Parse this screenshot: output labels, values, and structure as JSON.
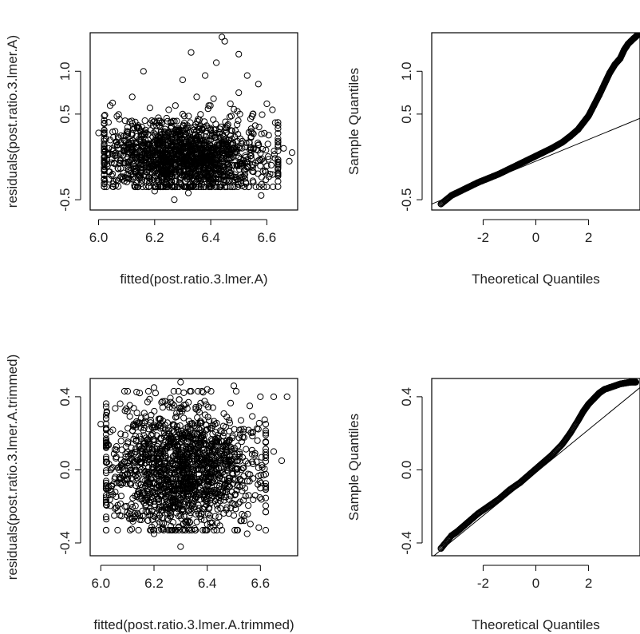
{
  "chart_data": [
    {
      "type": "scatter",
      "title": "",
      "xlabel": "fitted(post.ratio.3.lmer.A)",
      "ylabel": "residuals(post.ratio.3.lmer.A)",
      "xlim": [
        5.97,
        6.71
      ],
      "ylim": [
        -0.62,
        1.45
      ],
      "xticks": [
        6.0,
        6.2,
        6.4,
        6.6
      ],
      "xtick_labels": [
        "6.0",
        "6.2",
        "6.4",
        "6.6"
      ],
      "yticks": [
        -0.5,
        0.5,
        1.0
      ],
      "ytick_labels": [
        "-0.5",
        "0.5",
        "1.0"
      ],
      "marker": "circle-open",
      "points": [
        [
          6.0,
          0.28
        ],
        [
          6.05,
          0.63
        ],
        [
          6.12,
          0.7
        ],
        [
          6.16,
          1.0
        ],
        [
          6.3,
          0.9
        ],
        [
          6.38,
          0.95
        ],
        [
          6.42,
          1.1
        ],
        [
          6.45,
          1.35
        ],
        [
          6.5,
          1.2
        ],
        [
          6.44,
          1.4
        ],
        [
          6.33,
          1.22
        ],
        [
          6.53,
          0.95
        ],
        [
          6.57,
          0.85
        ],
        [
          6.6,
          0.62
        ],
        [
          6.63,
          0.4
        ],
        [
          6.62,
          0.55
        ],
        [
          6.55,
          0.5
        ],
        [
          6.66,
          0.1
        ],
        [
          6.69,
          0.05
        ],
        [
          6.68,
          -0.05
        ],
        [
          6.6,
          -0.35
        ],
        [
          6.58,
          -0.45
        ],
        [
          6.2,
          -0.4
        ],
        [
          6.27,
          -0.5
        ],
        [
          6.05,
          -0.2
        ],
        [
          6.1,
          -0.25
        ],
        [
          6.14,
          0.35
        ],
        [
          6.25,
          0.55
        ],
        [
          6.35,
          0.7
        ],
        [
          6.5,
          0.75
        ],
        [
          6.41,
          0.68
        ],
        [
          6.47,
          0.62
        ],
        [
          6.38,
          -0.35
        ],
        [
          6.45,
          -0.3
        ],
        [
          6.52,
          -0.22
        ],
        [
          6.55,
          -0.28
        ],
        [
          6.32,
          -0.42
        ],
        [
          6.15,
          -0.18
        ],
        [
          6.22,
          0.42
        ],
        [
          6.3,
          0.5
        ]
      ],
      "cloud": {
        "x_range": [
          6.02,
          6.64
        ],
        "y_range": [
          -0.35,
          0.6
        ],
        "center": [
          6.3,
          0.0
        ]
      }
    },
    {
      "type": "scatter",
      "subtype": "normal-qq",
      "title": "",
      "xlabel": "Theoretical Quantiles",
      "ylabel": "Sample Quantiles",
      "xlim": [
        -3.95,
        3.95
      ],
      "ylim": [
        -0.62,
        1.45
      ],
      "xticks": [
        -2,
        0,
        2
      ],
      "xtick_labels": [
        "-2",
        "0",
        "2"
      ],
      "yticks": [
        -0.5,
        0.5,
        1.0
      ],
      "ytick_labels": [
        "-0.5",
        "0.5",
        "1.0"
      ],
      "marker": "circle-open",
      "reference_line": {
        "x": [
          -3.95,
          3.95
        ],
        "y": [
          -0.55,
          0.45
        ]
      },
      "points": [
        [
          -3.6,
          -0.55
        ],
        [
          -3.2,
          -0.45
        ],
        [
          -3.0,
          -0.42
        ],
        [
          -2.6,
          -0.36
        ],
        [
          -2.2,
          -0.3
        ],
        [
          -1.8,
          -0.25
        ],
        [
          -1.4,
          -0.2
        ],
        [
          -1.0,
          -0.14
        ],
        [
          -0.6,
          -0.08
        ],
        [
          -0.2,
          -0.02
        ],
        [
          0.2,
          0.04
        ],
        [
          0.6,
          0.1
        ],
        [
          1.0,
          0.17
        ],
        [
          1.3,
          0.24
        ],
        [
          1.6,
          0.32
        ],
        [
          1.8,
          0.4
        ],
        [
          2.0,
          0.48
        ],
        [
          2.2,
          0.6
        ],
        [
          2.4,
          0.72
        ],
        [
          2.6,
          0.85
        ],
        [
          2.8,
          0.98
        ],
        [
          3.0,
          1.08
        ],
        [
          3.2,
          1.15
        ],
        [
          3.35,
          1.25
        ],
        [
          3.5,
          1.32
        ],
        [
          3.7,
          1.38
        ],
        [
          3.85,
          1.42
        ]
      ]
    },
    {
      "type": "scatter",
      "title": "",
      "xlabel": "fitted(post.ratio.3.lmer.A.trimmed)",
      "ylabel": "residuals(post.ratio.3.lmer.A.trimmed)",
      "xlim": [
        5.96,
        6.74
      ],
      "ylim": [
        -0.47,
        0.5
      ],
      "xticks": [
        6.0,
        6.2,
        6.4,
        6.6
      ],
      "xtick_labels": [
        "6.0",
        "6.2",
        "6.4",
        "6.6"
      ],
      "yticks": [
        -0.4,
        0.0,
        0.4
      ],
      "ytick_labels": [
        "-0.4",
        "0.0",
        "0.4"
      ],
      "marker": "circle-open",
      "points": [
        [
          6.0,
          0.25
        ],
        [
          6.1,
          0.32
        ],
        [
          6.2,
          0.45
        ],
        [
          6.3,
          0.48
        ],
        [
          6.4,
          0.44
        ],
        [
          6.5,
          0.46
        ],
        [
          6.6,
          0.4
        ],
        [
          6.65,
          0.4
        ],
        [
          6.7,
          0.4
        ],
        [
          6.62,
          0.25
        ],
        [
          6.68,
          0.05
        ],
        [
          6.6,
          -0.1
        ],
        [
          6.55,
          -0.35
        ],
        [
          6.5,
          -0.25
        ],
        [
          6.3,
          -0.42
        ],
        [
          6.2,
          -0.35
        ],
        [
          6.1,
          -0.25
        ],
        [
          6.02,
          -0.1
        ],
        [
          6.65,
          0.1
        ],
        [
          6.56,
          0.35
        ]
      ],
      "cloud": {
        "x_range": [
          6.02,
          6.62
        ],
        "y_range": [
          -0.33,
          0.43
        ],
        "center": [
          6.3,
          0.0
        ]
      }
    },
    {
      "type": "scatter",
      "subtype": "normal-qq",
      "title": "",
      "xlabel": "Theoretical Quantiles",
      "ylabel": "Sample Quantiles",
      "xlim": [
        -3.95,
        3.95
      ],
      "ylim": [
        -0.47,
        0.5
      ],
      "xticks": [
        -2,
        0,
        2
      ],
      "xtick_labels": [
        "-2",
        "0",
        "2"
      ],
      "yticks": [
        -0.4,
        0.0,
        0.4
      ],
      "ytick_labels": [
        "-0.4",
        "0.0",
        "0.4"
      ],
      "marker": "circle-open",
      "reference_line": {
        "x": [
          -3.95,
          3.95
        ],
        "y": [
          -0.48,
          0.45
        ]
      },
      "points": [
        [
          -3.6,
          -0.43
        ],
        [
          -3.2,
          -0.36
        ],
        [
          -3.0,
          -0.34
        ],
        [
          -2.6,
          -0.29
        ],
        [
          -2.2,
          -0.24
        ],
        [
          -1.8,
          -0.2
        ],
        [
          -1.4,
          -0.16
        ],
        [
          -1.0,
          -0.11
        ],
        [
          -0.6,
          -0.07
        ],
        [
          -0.2,
          -0.02
        ],
        [
          0.2,
          0.03
        ],
        [
          0.6,
          0.08
        ],
        [
          1.0,
          0.14
        ],
        [
          1.3,
          0.2
        ],
        [
          1.6,
          0.27
        ],
        [
          1.8,
          0.32
        ],
        [
          2.0,
          0.36
        ],
        [
          2.2,
          0.39
        ],
        [
          2.4,
          0.42
        ],
        [
          2.6,
          0.44
        ],
        [
          2.8,
          0.45
        ],
        [
          3.0,
          0.46
        ],
        [
          3.2,
          0.47
        ],
        [
          3.4,
          0.475
        ],
        [
          3.6,
          0.48
        ],
        [
          3.8,
          0.48
        ]
      ]
    }
  ]
}
